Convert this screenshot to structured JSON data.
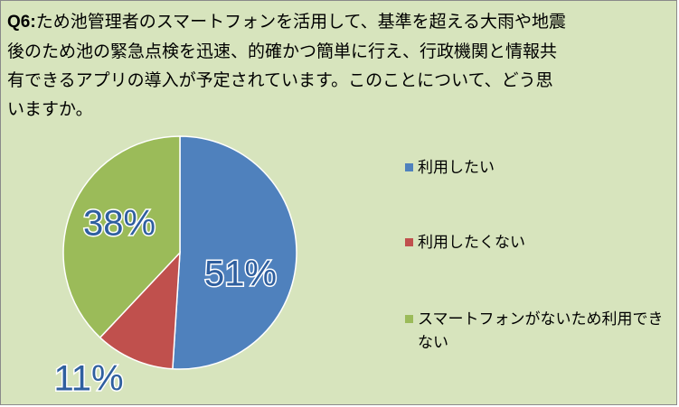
{
  "question": {
    "id": "Q6:",
    "text": "ため池管理者のスマートフォンを活用して、基準を超える大雨や地震後のため池の緊急点検を迅速、的確かつ簡単に行え、行政機関と情報共有できるアプリの導入が予定されています。このことについて、どう思いますか。"
  },
  "colors": {
    "background": "#d7e4bd",
    "series": [
      "#4f81bd",
      "#c0504d",
      "#9bbb59"
    ]
  },
  "chart_data": {
    "type": "pie",
    "title": "",
    "categories": [
      "利用したい",
      "利用したくない",
      "スマートフォンがないため利用できない"
    ],
    "values": [
      51,
      11,
      38
    ],
    "labels": [
      "51%",
      "11%",
      "38%"
    ],
    "legend_position": "right",
    "start_angle": "12 o'clock",
    "direction": "clockwise"
  },
  "legend": {
    "items": [
      {
        "label": "利用したい"
      },
      {
        "label": "利用したくない"
      },
      {
        "label": "スマートフォンがないため利用できない"
      }
    ]
  }
}
